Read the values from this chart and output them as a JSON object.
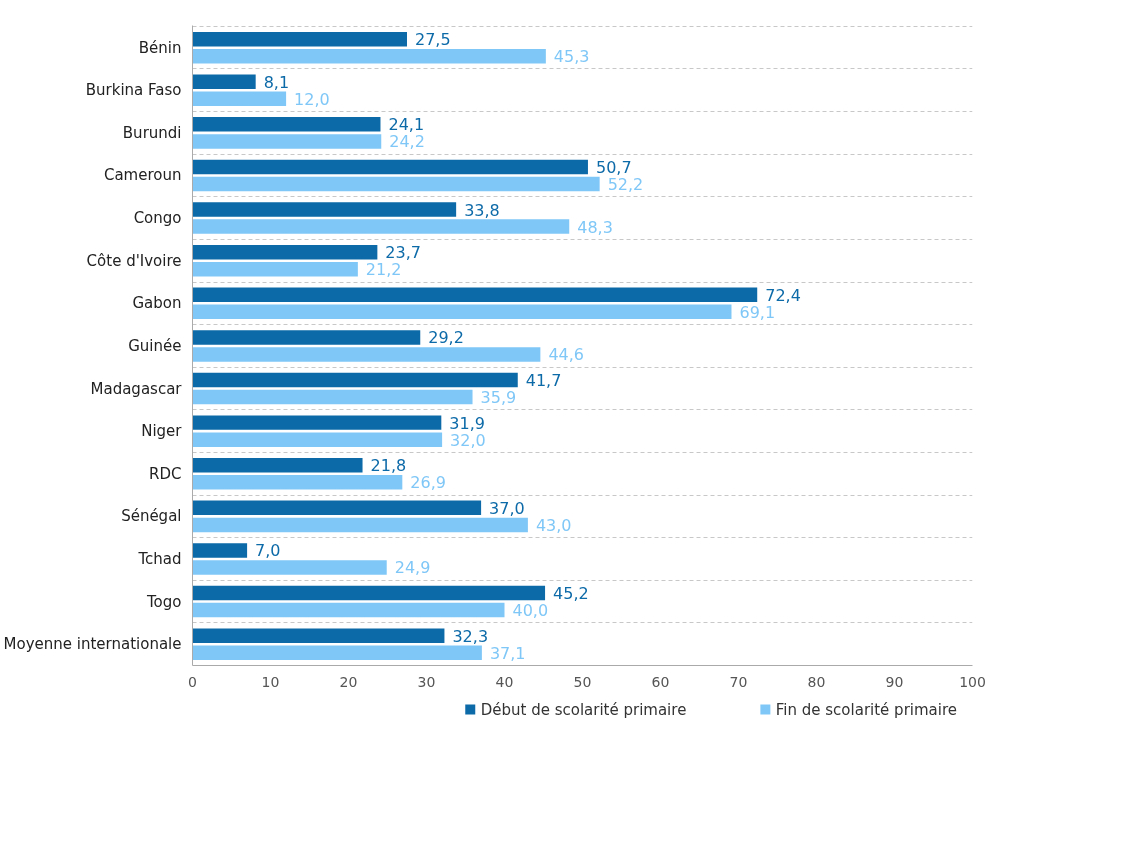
{
  "chart_data": {
    "type": "bar",
    "orientation": "horizontal",
    "categories": [
      "Bénin",
      "Burkina Faso",
      "Burundi",
      "Cameroun",
      "Congo",
      "Côte d'Ivoire",
      "Gabon",
      "Guinée",
      "Madagascar",
      "Niger",
      "RDC",
      "Sénégal",
      "Tchad",
      "Togo",
      "Moyenne internationale"
    ],
    "series": [
      {
        "name": "Début de scolarité primaire",
        "color": "#0d6aa8",
        "values": [
          27.5,
          8.1,
          24.1,
          50.7,
          33.8,
          23.7,
          72.4,
          29.2,
          41.7,
          31.9,
          21.8,
          37.0,
          7.0,
          45.2,
          32.3
        ],
        "value_labels": [
          "27,5",
          "8,1",
          "24,1",
          "50,7",
          "33,8",
          "23,7",
          "72,4",
          "29,2",
          "41,7",
          "31,9",
          "21,8",
          "37,0",
          "7,0",
          "45,2",
          "32,3"
        ]
      },
      {
        "name": "Fin de scolarité primaire",
        "color": "#7fc7f7",
        "values": [
          45.3,
          12.0,
          24.2,
          52.2,
          48.3,
          21.2,
          69.1,
          44.6,
          35.9,
          32.0,
          26.9,
          43.0,
          24.9,
          40.0,
          37.1
        ],
        "value_labels": [
          "45,3",
          "12,0",
          "24,2",
          "52,2",
          "48,3",
          "21,2",
          "69,1",
          "44,6",
          "35,9",
          "32,0",
          "26,9",
          "43,0",
          "24,9",
          "40,0",
          "37,1"
        ]
      }
    ],
    "xlim": [
      0,
      100
    ],
    "xticks": [
      0,
      10,
      20,
      30,
      40,
      50,
      60,
      70,
      80,
      90,
      100
    ],
    "grid": "y",
    "legend": "bottom"
  }
}
